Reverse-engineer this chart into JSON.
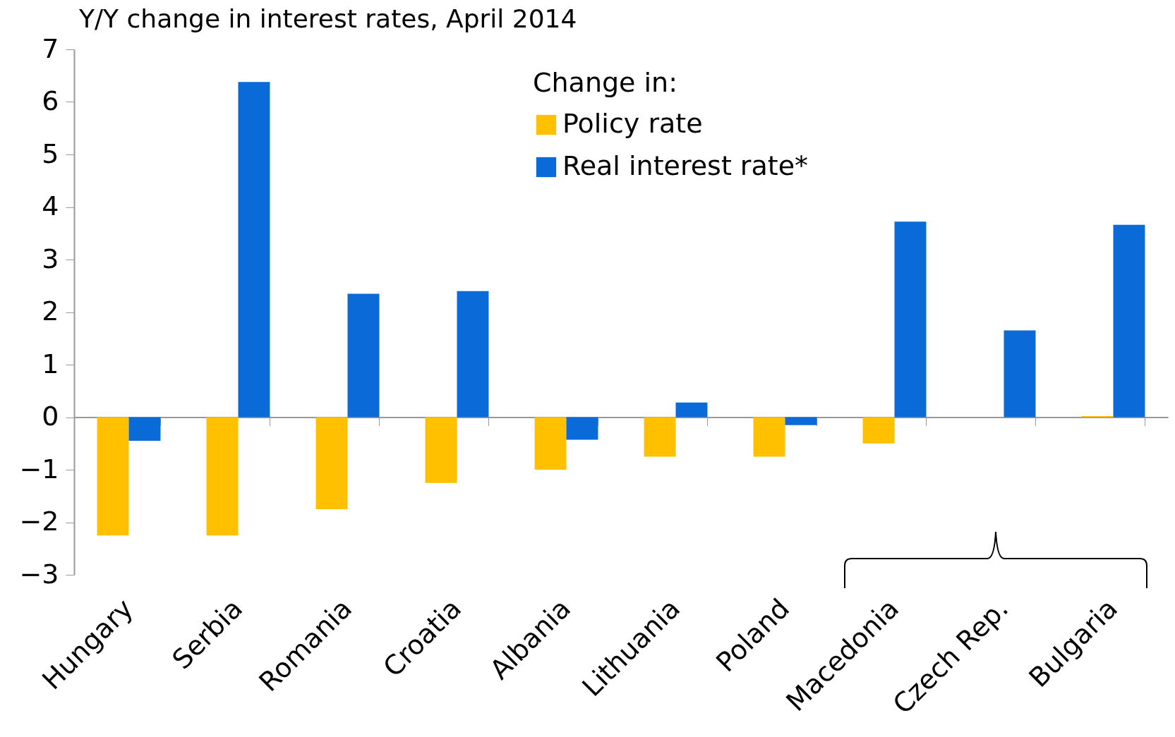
{
  "chart_data": {
    "type": "bar",
    "title": "Y/Y change in interest rates, April 2014",
    "categories": [
      "Hungary",
      "Serbia",
      "Romania",
      "Croatia",
      "Albania",
      "Lithuania",
      "Poland",
      "Macedonia",
      "Czech Rep.",
      "Bulgaria"
    ],
    "legend_title": "Change in:",
    "series": [
      {
        "name": "Policy rate",
        "color": "#ffc000",
        "values": [
          -2.25,
          -2.25,
          -1.75,
          -1.25,
          -1.0,
          -0.75,
          -0.75,
          -0.5,
          0,
          0.02
        ]
      },
      {
        "name": "Real interest rate*",
        "color": "#0a6ad8",
        "values": [
          -0.45,
          6.38,
          2.35,
          2.4,
          -0.43,
          0.28,
          -0.15,
          3.72,
          1.65,
          3.66
        ]
      }
    ],
    "ylim": [
      -3,
      7
    ],
    "yticks": [
      -3,
      -2,
      -1,
      0,
      1,
      2,
      3,
      4,
      5,
      6,
      7
    ],
    "legend": "top"
  }
}
